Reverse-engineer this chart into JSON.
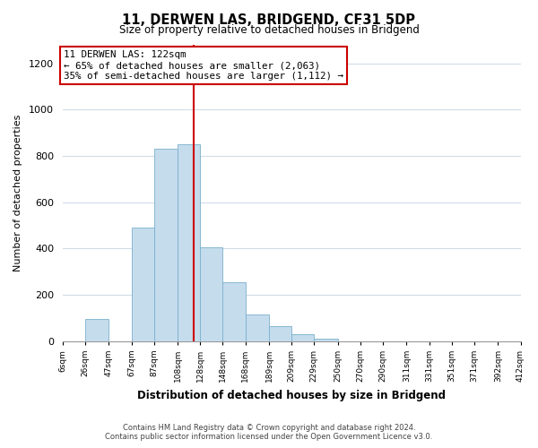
{
  "title": "11, DERWEN LAS, BRIDGEND, CF31 5DP",
  "subtitle": "Size of property relative to detached houses in Bridgend",
  "xlabel": "Distribution of detached houses by size in Bridgend",
  "ylabel": "Number of detached properties",
  "bar_color": "#c5dced",
  "bar_edge_color": "#7ab0cc",
  "background_color": "#ffffff",
  "grid_color": "#d0dce8",
  "annotation_box_edge": "#cc0000",
  "vline_color": "#cc0000",
  "annotation_line1": "11 DERWEN LAS: 122sqm",
  "annotation_line2": "← 65% of detached houses are smaller (2,063)",
  "annotation_line3": "35% of semi-detached houses are larger (1,112) →",
  "property_size": 122,
  "tick_labels": [
    "6sqm",
    "26sqm",
    "47sqm",
    "67sqm",
    "87sqm",
    "108sqm",
    "128sqm",
    "148sqm",
    "168sqm",
    "189sqm",
    "209sqm",
    "229sqm",
    "250sqm",
    "270sqm",
    "290sqm",
    "311sqm",
    "331sqm",
    "351sqm",
    "371sqm",
    "392sqm",
    "412sqm"
  ],
  "bin_edges": [
    6,
    26,
    47,
    67,
    87,
    108,
    128,
    148,
    168,
    189,
    209,
    229,
    250,
    270,
    290,
    311,
    331,
    351,
    371,
    392,
    412
  ],
  "bar_heights": [
    0,
    95,
    0,
    490,
    830,
    850,
    405,
    255,
    115,
    65,
    30,
    10,
    0,
    0,
    0,
    0,
    0,
    0,
    0,
    0
  ],
  "ylim": [
    0,
    1280
  ],
  "yticks": [
    0,
    200,
    400,
    600,
    800,
    1000,
    1200
  ],
  "footnote1": "Contains HM Land Registry data © Crown copyright and database right 2024.",
  "footnote2": "Contains public sector information licensed under the Open Government Licence v3.0."
}
